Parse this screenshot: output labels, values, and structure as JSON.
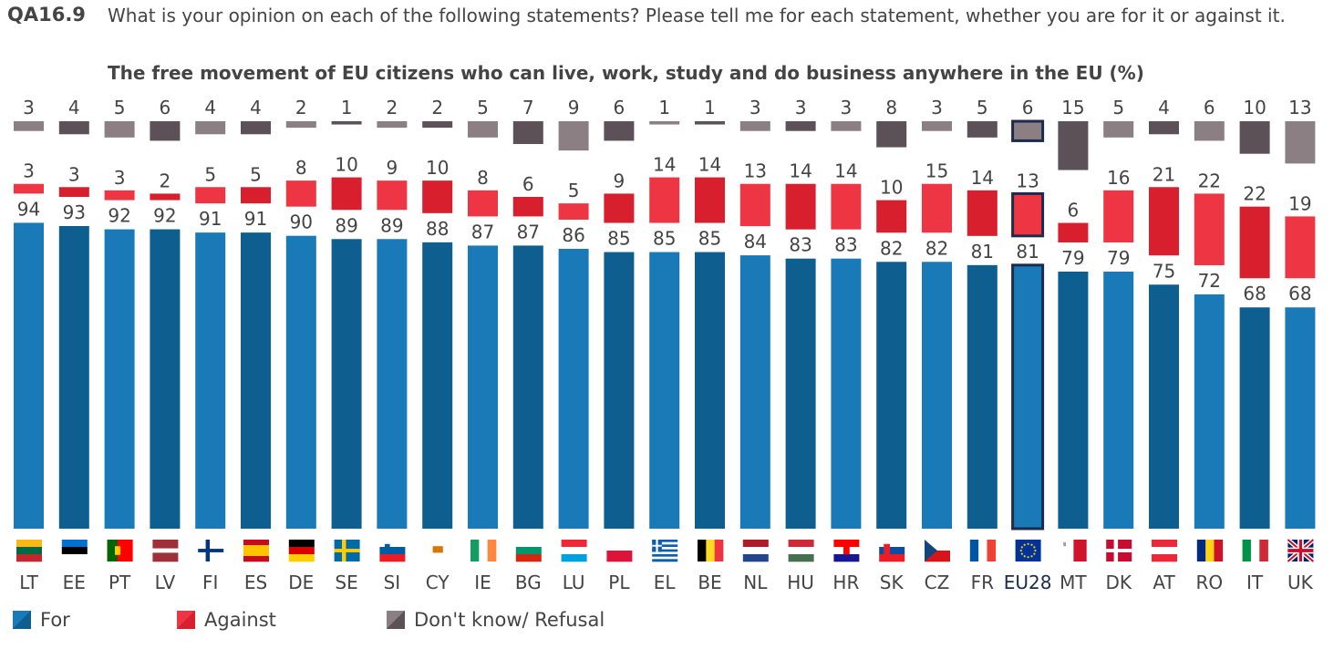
{
  "header": {
    "code": "QA16.9",
    "question": "What is your opinion on each of the following statements? Please tell me for each statement, whether you are for it or against it.",
    "subtitle": "The free movement of EU citizens who can live, work, study and do business anywhere in the EU  (%)"
  },
  "colors": {
    "for_light": "#1a7ab8",
    "for_dark": "#0e5f8f",
    "against_light": "#ee3543",
    "against_dark": "#d71f2d",
    "dk_light": "#8c7f83",
    "dk_dark": "#5b5156",
    "highlight_border": "#1b2b4f"
  },
  "legend": [
    {
      "label": "For",
      "color": "#1a7ab8"
    },
    {
      "label": "Against",
      "color": "#ee3543"
    },
    {
      "label": "Don't know/ Refusal",
      "color": "#6e6468"
    }
  ],
  "chart_data": {
    "type": "bar",
    "categories": [
      "LT",
      "EE",
      "PT",
      "LV",
      "FI",
      "ES",
      "DE",
      "SE",
      "SI",
      "CY",
      "IE",
      "BG",
      "LU",
      "PL",
      "EL",
      "BE",
      "NL",
      "HU",
      "HR",
      "SK",
      "CZ",
      "FR",
      "EU28",
      "MT",
      "DK",
      "AT",
      "RO",
      "IT",
      "UK"
    ],
    "highlight": "EU28",
    "series": [
      {
        "name": "For",
        "values": [
          94,
          93,
          92,
          92,
          91,
          91,
          90,
          89,
          89,
          88,
          87,
          87,
          86,
          85,
          85,
          85,
          84,
          83,
          83,
          82,
          82,
          81,
          81,
          79,
          79,
          75,
          72,
          68,
          68
        ]
      },
      {
        "name": "Against",
        "values": [
          3,
          3,
          3,
          2,
          5,
          5,
          8,
          10,
          9,
          10,
          8,
          6,
          5,
          9,
          14,
          14,
          13,
          14,
          14,
          10,
          15,
          14,
          13,
          6,
          16,
          21,
          22,
          22,
          19
        ]
      },
      {
        "name": "Don't know/ Refusal",
        "values": [
          3,
          4,
          5,
          6,
          4,
          4,
          2,
          1,
          2,
          2,
          5,
          7,
          9,
          6,
          1,
          1,
          3,
          3,
          3,
          8,
          3,
          5,
          6,
          15,
          5,
          4,
          6,
          10,
          13
        ]
      }
    ],
    "flags": [
      "LT",
      "EE",
      "PT",
      "LV",
      "FI",
      "ES",
      "DE",
      "SE",
      "SI",
      "CY",
      "IE",
      "BG",
      "LU",
      "PL",
      "EL",
      "BE",
      "NL",
      "HU",
      "HR",
      "SK",
      "CZ",
      "FR",
      "EU28",
      "MT",
      "DK",
      "AT",
      "RO",
      "IT",
      "UK"
    ],
    "ylim": [
      0,
      100
    ]
  }
}
